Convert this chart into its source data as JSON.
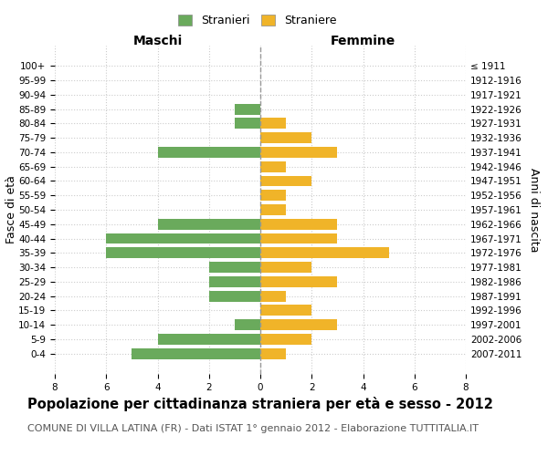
{
  "age_groups_bottom_to_top": [
    "0-4",
    "5-9",
    "10-14",
    "15-19",
    "20-24",
    "25-29",
    "30-34",
    "35-39",
    "40-44",
    "45-49",
    "50-54",
    "55-59",
    "60-64",
    "65-69",
    "70-74",
    "75-79",
    "80-84",
    "85-89",
    "90-94",
    "95-99",
    "100+"
  ],
  "birth_years_bottom_to_top": [
    "2007-2011",
    "2002-2006",
    "1997-2001",
    "1992-1996",
    "1987-1991",
    "1982-1986",
    "1977-1981",
    "1972-1976",
    "1967-1971",
    "1962-1966",
    "1957-1961",
    "1952-1956",
    "1947-1951",
    "1942-1946",
    "1937-1941",
    "1932-1936",
    "1927-1931",
    "1922-1926",
    "1917-1921",
    "1912-1916",
    "≤ 1911"
  ],
  "maschi_bottom_to_top": [
    5,
    4,
    1,
    0,
    2,
    2,
    2,
    6,
    6,
    4,
    0,
    0,
    0,
    0,
    4,
    0,
    1,
    1,
    0,
    0,
    0
  ],
  "femmine_bottom_to_top": [
    1,
    2,
    3,
    2,
    1,
    3,
    2,
    5,
    3,
    3,
    1,
    1,
    2,
    1,
    3,
    2,
    1,
    0,
    0,
    0,
    0
  ],
  "color_maschi": "#6aaa5c",
  "color_femmine": "#f0b429",
  "background_color": "#ffffff",
  "grid_color": "#cccccc",
  "title": "Popolazione per cittadinanza straniera per età e sesso - 2012",
  "subtitle": "COMUNE DI VILLA LATINA (FR) - Dati ISTAT 1° gennaio 2012 - Elaborazione TUTTITALIA.IT",
  "ylabel_left": "Fasce di età",
  "ylabel_right": "Anni di nascita",
  "xlabel_left": "Maschi",
  "xlabel_right": "Femmine",
  "legend_maschi": "Stranieri",
  "legend_femmine": "Straniere",
  "xlim": 8,
  "title_fontsize": 10.5,
  "subtitle_fontsize": 8,
  "tick_fontsize": 7.5,
  "label_fontsize": 9
}
